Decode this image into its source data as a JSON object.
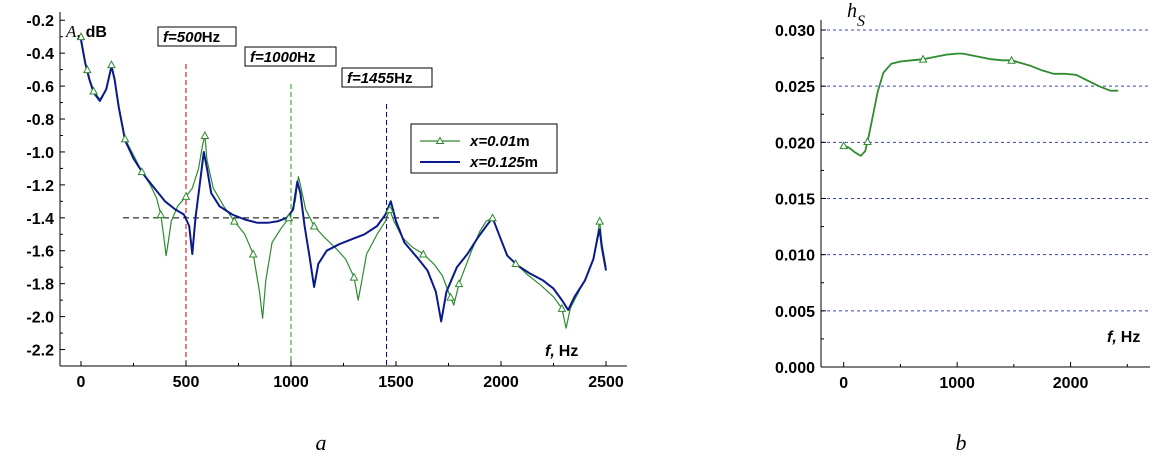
{
  "chart_data": [
    {
      "type": "line",
      "panel_caption": "a",
      "ylabel_var": "A,",
      "ylabel_unit": "dB",
      "xlabel_var": "f,",
      "xlabel_unit": "Hz",
      "xlim": [
        -100,
        2600
      ],
      "ylim": [
        -2.3,
        -0.15
      ],
      "xticks": [
        "0",
        "500",
        "1000",
        "1500",
        "2000",
        "2500"
      ],
      "xtick_values": [
        0,
        500,
        1000,
        1500,
        2000,
        2500
      ],
      "yticks": [
        "-0.2",
        "-0.4",
        "-0.6",
        "-0.8",
        "-1.0",
        "-1.2",
        "-1.4",
        "-1.6",
        "-1.8",
        "-2.0",
        "-2.2"
      ],
      "ytick_values": [
        -0.2,
        -0.4,
        -0.6,
        -0.8,
        -1.0,
        -1.2,
        -1.4,
        -1.6,
        -1.8,
        -2.0,
        -2.2
      ],
      "reference_line": {
        "y": -1.4,
        "x_from": 200,
        "x_to": 1720,
        "color": "#000000"
      },
      "frequency_markers": [
        {
          "f": 500,
          "label_var": "f=500",
          "label_unit": "Hz",
          "color": "#cc0000"
        },
        {
          "f": 1000,
          "label_var": "f=1000",
          "label_unit": "Hz",
          "color": "#1a9a1a"
        },
        {
          "f": 1455,
          "label_var": "f=1455",
          "label_unit": "Hz",
          "color": "#000099"
        }
      ],
      "legend_position": "right",
      "series": [
        {
          "name_var": "x=0.01",
          "name_unit": "m",
          "color": "#2e8b2e",
          "marker": "triangle",
          "points": [
            [
              0,
              -0.3
            ],
            [
              20,
              -0.45
            ],
            [
              40,
              -0.55
            ],
            [
              60,
              -0.63
            ],
            [
              90,
              -0.68
            ],
            [
              120,
              -0.62
            ],
            [
              145,
              -0.47
            ],
            [
              160,
              -0.55
            ],
            [
              180,
              -0.72
            ],
            [
              210,
              -0.92
            ],
            [
              250,
              -1.02
            ],
            [
              290,
              -1.12
            ],
            [
              330,
              -1.2
            ],
            [
              360,
              -1.28
            ],
            [
              380,
              -1.38
            ],
            [
              395,
              -1.52
            ],
            [
              405,
              -1.63
            ],
            [
              415,
              -1.55
            ],
            [
              430,
              -1.42
            ],
            [
              460,
              -1.33
            ],
            [
              500,
              -1.27
            ],
            [
              530,
              -1.22
            ],
            [
              560,
              -1.1
            ],
            [
              580,
              -0.95
            ],
            [
              590,
              -0.9
            ],
            [
              600,
              -1.05
            ],
            [
              630,
              -1.22
            ],
            [
              680,
              -1.33
            ],
            [
              730,
              -1.42
            ],
            [
              780,
              -1.5
            ],
            [
              820,
              -1.62
            ],
            [
              850,
              -1.85
            ],
            [
              865,
              -2.01
            ],
            [
              880,
              -1.78
            ],
            [
              910,
              -1.55
            ],
            [
              950,
              -1.47
            ],
            [
              990,
              -1.4
            ],
            [
              1020,
              -1.3
            ],
            [
              1035,
              -1.15
            ],
            [
              1045,
              -1.2
            ],
            [
              1070,
              -1.35
            ],
            [
              1110,
              -1.45
            ],
            [
              1160,
              -1.52
            ],
            [
              1210,
              -1.58
            ],
            [
              1260,
              -1.65
            ],
            [
              1300,
              -1.76
            ],
            [
              1320,
              -1.9
            ],
            [
              1335,
              -1.8
            ],
            [
              1360,
              -1.62
            ],
            [
              1410,
              -1.5
            ],
            [
              1450,
              -1.42
            ],
            [
              1470,
              -1.35
            ],
            [
              1490,
              -1.42
            ],
            [
              1530,
              -1.52
            ],
            [
              1580,
              -1.58
            ],
            [
              1630,
              -1.62
            ],
            [
              1680,
              -1.68
            ],
            [
              1720,
              -1.75
            ],
            [
              1750,
              -1.85
            ],
            [
              1775,
              -1.93
            ],
            [
              1800,
              -1.8
            ],
            [
              1860,
              -1.6
            ],
            [
              1900,
              -1.48
            ],
            [
              1930,
              -1.42
            ],
            [
              1960,
              -1.4
            ],
            [
              1990,
              -1.5
            ],
            [
              2030,
              -1.63
            ],
            [
              2080,
              -1.69
            ],
            [
              2130,
              -1.75
            ],
            [
              2190,
              -1.81
            ],
            [
              2250,
              -1.88
            ],
            [
              2290,
              -1.95
            ],
            [
              2310,
              -2.07
            ],
            [
              2330,
              -1.95
            ],
            [
              2370,
              -1.85
            ],
            [
              2410,
              -1.75
            ],
            [
              2440,
              -1.65
            ],
            [
              2460,
              -1.5
            ],
            [
              2470,
              -1.42
            ],
            [
              2480,
              -1.55
            ],
            [
              2500,
              -1.7
            ]
          ],
          "markers_at": [
            0,
            30,
            60,
            145,
            210,
            290,
            380,
            500,
            590,
            730,
            820,
            990,
            1110,
            1300,
            1470,
            1630,
            1760,
            1800,
            1960,
            2070,
            2290,
            2470
          ]
        },
        {
          "name_var": "x=0.125",
          "name_unit": "m",
          "color": "#0a1a8c",
          "points": [
            [
              0,
              -0.32
            ],
            [
              20,
              -0.46
            ],
            [
              40,
              -0.56
            ],
            [
              60,
              -0.64
            ],
            [
              90,
              -0.69
            ],
            [
              120,
              -0.62
            ],
            [
              145,
              -0.48
            ],
            [
              160,
              -0.56
            ],
            [
              180,
              -0.73
            ],
            [
              210,
              -0.93
            ],
            [
              250,
              -1.04
            ],
            [
              300,
              -1.14
            ],
            [
              350,
              -1.22
            ],
            [
              400,
              -1.3
            ],
            [
              450,
              -1.35
            ],
            [
              490,
              -1.38
            ],
            [
              515,
              -1.45
            ],
            [
              530,
              -1.62
            ],
            [
              545,
              -1.4
            ],
            [
              565,
              -1.2
            ],
            [
              585,
              -1.0
            ],
            [
              600,
              -1.1
            ],
            [
              620,
              -1.25
            ],
            [
              660,
              -1.33
            ],
            [
              720,
              -1.38
            ],
            [
              780,
              -1.41
            ],
            [
              840,
              -1.43
            ],
            [
              890,
              -1.43
            ],
            [
              940,
              -1.42
            ],
            [
              980,
              -1.4
            ],
            [
              1010,
              -1.35
            ],
            [
              1030,
              -1.18
            ],
            [
              1045,
              -1.25
            ],
            [
              1065,
              -1.45
            ],
            [
              1090,
              -1.65
            ],
            [
              1110,
              -1.82
            ],
            [
              1130,
              -1.68
            ],
            [
              1170,
              -1.6
            ],
            [
              1230,
              -1.56
            ],
            [
              1290,
              -1.53
            ],
            [
              1350,
              -1.5
            ],
            [
              1410,
              -1.45
            ],
            [
              1450,
              -1.38
            ],
            [
              1475,
              -1.3
            ],
            [
              1500,
              -1.42
            ],
            [
              1540,
              -1.55
            ],
            [
              1600,
              -1.64
            ],
            [
              1650,
              -1.72
            ],
            [
              1690,
              -1.85
            ],
            [
              1715,
              -2.03
            ],
            [
              1740,
              -1.85
            ],
            [
              1790,
              -1.7
            ],
            [
              1840,
              -1.62
            ],
            [
              1890,
              -1.52
            ],
            [
              1930,
              -1.45
            ],
            [
              1960,
              -1.4
            ],
            [
              1990,
              -1.5
            ],
            [
              2030,
              -1.63
            ],
            [
              2080,
              -1.69
            ],
            [
              2140,
              -1.74
            ],
            [
              2200,
              -1.78
            ],
            [
              2250,
              -1.83
            ],
            [
              2290,
              -1.9
            ],
            [
              2320,
              -1.96
            ],
            [
              2350,
              -1.88
            ],
            [
              2400,
              -1.78
            ],
            [
              2440,
              -1.65
            ],
            [
              2460,
              -1.52
            ],
            [
              2470,
              -1.47
            ],
            [
              2480,
              -1.58
            ],
            [
              2500,
              -1.72
            ]
          ]
        }
      ]
    },
    {
      "type": "line",
      "panel_caption": "b",
      "ylabel_var": "h",
      "ylabel_sub": "S",
      "xlabel_var": "f,",
      "xlabel_unit": "Hz",
      "xlim": [
        -200,
        2700
      ],
      "ylim": [
        0,
        0.03
      ],
      "xticks": [
        "0",
        "1000",
        "2000"
      ],
      "xtick_values": [
        0,
        1000,
        2000
      ],
      "yticks": [
        "0.000",
        "0.005",
        "0.010",
        "0.015",
        "0.020",
        "0.025",
        "0.030"
      ],
      "ytick_values": [
        0,
        0.005,
        0.01,
        0.015,
        0.02,
        0.025,
        0.03
      ],
      "grid": "horizontal dashed",
      "grid_color": "#3a44c8",
      "series": [
        {
          "color": "#2e8b2e",
          "marker": "triangle",
          "points": [
            [
              0,
              0.0197
            ],
            [
              50,
              0.0195
            ],
            [
              100,
              0.0191
            ],
            [
              150,
              0.0188
            ],
            [
              190,
              0.0192
            ],
            [
              220,
              0.0205
            ],
            [
              260,
              0.0225
            ],
            [
              300,
              0.0245
            ],
            [
              350,
              0.0262
            ],
            [
              420,
              0.027
            ],
            [
              500,
              0.0272
            ],
            [
              600,
              0.0273
            ],
            [
              700,
              0.0274
            ],
            [
              800,
              0.0276
            ],
            [
              900,
              0.0278
            ],
            [
              1000,
              0.0279
            ],
            [
              1050,
              0.0279
            ],
            [
              1100,
              0.0278
            ],
            [
              1200,
              0.0276
            ],
            [
              1300,
              0.0274
            ],
            [
              1400,
              0.0273
            ],
            [
              1480,
              0.0273
            ],
            [
              1550,
              0.0271
            ],
            [
              1650,
              0.0268
            ],
            [
              1750,
              0.0264
            ],
            [
              1850,
              0.0261
            ],
            [
              1950,
              0.0261
            ],
            [
              2050,
              0.026
            ],
            [
              2150,
              0.0255
            ],
            [
              2250,
              0.025
            ],
            [
              2350,
              0.0246
            ],
            [
              2420,
              0.0246
            ]
          ],
          "markers_at": [
            0,
            210,
            700,
            1480
          ]
        }
      ]
    }
  ]
}
